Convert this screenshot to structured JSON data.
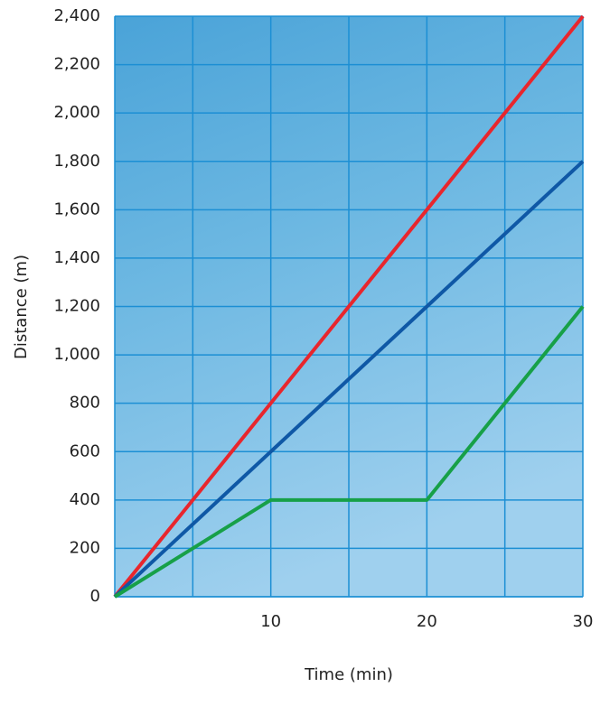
{
  "chart_data": {
    "type": "line",
    "x_label": "Time (min)",
    "y_label": "Distance (m)",
    "x": [
      0,
      10,
      20,
      30
    ],
    "series": [
      {
        "color": "#e8262d",
        "values": [
          0,
          800,
          1600,
          2400
        ]
      },
      {
        "color": "#0f58a6",
        "values": [
          0,
          600,
          1200,
          1800
        ]
      },
      {
        "color": "#17a048",
        "values": [
          0,
          400,
          400,
          1200
        ]
      }
    ],
    "xlim": [
      0,
      30
    ],
    "xticks": [
      10,
      20,
      30
    ],
    "xgrid": [
      5,
      10,
      15,
      20,
      25,
      30
    ],
    "ylim": [
      0,
      2400
    ],
    "yticks": [
      0,
      200,
      400,
      600,
      800,
      {
        "value": 1000,
        "label": "1,000"
      },
      {
        "value": 1200,
        "label": "1,200"
      },
      {
        "value": 1400,
        "label": "1,400"
      },
      {
        "value": 1600,
        "label": "1,600"
      },
      {
        "value": 1800,
        "label": "1,800"
      },
      {
        "value": 2000,
        "label": "2,000"
      },
      {
        "value": 2200,
        "label": "2,200"
      },
      {
        "value": 2400,
        "label": "2,400"
      }
    ],
    "grid": true,
    "grid_color": "#1c8fd4"
  }
}
